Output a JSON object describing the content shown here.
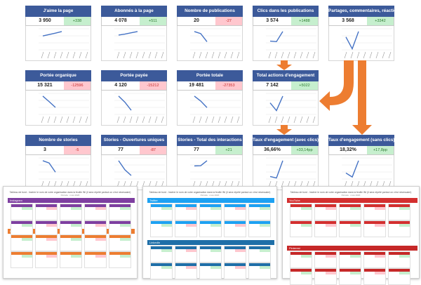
{
  "cards": [
    {
      "title": "J'aime la page",
      "value": "3 950",
      "delta": "+338",
      "trend": "pos",
      "series": [
        3000,
        3300,
        3600,
        3950
      ]
    },
    {
      "title": "Abonnés à la page",
      "value": "4 078",
      "delta": "+511",
      "trend": "pos",
      "series": [
        3300,
        3500,
        3800,
        4078
      ]
    },
    {
      "title": "Nombre de publications",
      "value": "20",
      "delta": "-27",
      "trend": "neg",
      "series": [
        45,
        40,
        20
      ]
    },
    {
      "title": "Clics dans les publications",
      "value": "3 574",
      "delta": "+1488",
      "trend": "pos",
      "series": [
        1700,
        1600,
        3574
      ]
    },
    {
      "title": "Partages, commentaires, réactions",
      "value": "3 568",
      "delta": "+3342",
      "trend": "pos",
      "series": [
        2500,
        200,
        3568
      ]
    },
    {
      "title": "Portée organique",
      "value": "15 321",
      "delta": "-12596",
      "trend": "neg",
      "series": [
        40000,
        28000,
        15321
      ]
    },
    {
      "title": "Portée payée",
      "value": "4 120",
      "delta": "-15212",
      "trend": "neg",
      "series": [
        18000,
        12000,
        4120
      ]
    },
    {
      "title": "Portée totale",
      "value": "19 481",
      "delta": "-27353",
      "trend": "neg",
      "series": [
        52000,
        38000,
        19481
      ]
    },
    {
      "title": "Total actions d'engagement",
      "value": "7 142",
      "delta": "+5022",
      "trend": "pos",
      "series": [
        4500,
        1500,
        7142
      ]
    },
    {
      "title": "Nombre de stories",
      "value": "3",
      "delta": "-5",
      "trend": "neg",
      "series": [
        8,
        7,
        3
      ]
    },
    {
      "title": "Stories - Ouvertures uniques",
      "value": "77",
      "delta": "-87",
      "trend": "neg",
      "series": [
        400,
        200,
        77
      ]
    },
    {
      "title": "Stories - Total des interactions",
      "value": "77",
      "delta": "+21",
      "trend": "pos",
      "series": [
        55,
        56,
        77
      ]
    },
    {
      "title": "Taux d'engagement (avec clics)",
      "value": "36,66%",
      "delta": "+33,14pp",
      "trend": "pos",
      "series": [
        5,
        2,
        36.66
      ]
    },
    {
      "title": "Taux d'engagement (sans clics)",
      "value": "18,32%",
      "delta": "+17,8pp",
      "trend": "pos",
      "series": [
        6,
        2,
        18.32
      ]
    }
  ],
  "colors": {
    "header": "#3c5a9a",
    "arrow": "#ed7d31",
    "pos_bg": "#c6efce",
    "neg_bg": "#ffc7ce",
    "line": "#4472c4"
  },
  "thumbnails": [
    {
      "title": "Tableau de bord - Insérer le nom de votre organisation dans la feuille INI (il sera répété partout où c'est nécessaire)",
      "subtitle": "Période : mois 2020",
      "sections": [
        {
          "label": "Instagram",
          "color": "#7e3fa0"
        },
        {
          "label": "Instagram",
          "color": "#ed7d31"
        }
      ]
    },
    {
      "title": "Tableau de bord - Insérer le nom de votre organisation dans la feuille INI (il sera répété partout où c'est nécessaire)",
      "subtitle": "Période : mois 2020",
      "sections": [
        {
          "label": "Twitter",
          "color": "#1da1f2"
        },
        {
          "label": "LinkedIn",
          "color": "#1f6fa8"
        }
      ]
    },
    {
      "title": "Tableau de bord - Insérer le nom de votre organisation dans la feuille INI (il sera répété partout où c'est nécessaire)",
      "subtitle": "Période : mois 2020",
      "sections": [
        {
          "label": "YouTube",
          "color": "#d32f2f"
        },
        {
          "label": "Pinterest",
          "color": "#c62828"
        }
      ]
    }
  ]
}
